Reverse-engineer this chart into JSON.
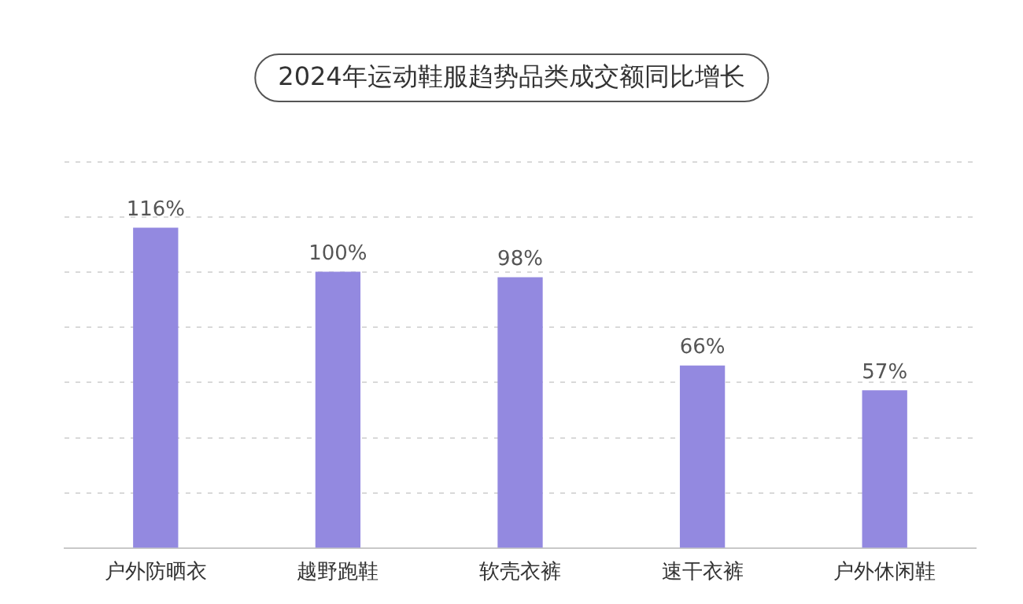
{
  "chart_data": {
    "type": "bar",
    "title": "2024年运动鞋服趋势品类成交额同比增长",
    "categories": [
      "户外防晒衣",
      "越野跑鞋",
      "软壳衣裤",
      "速干衣裤",
      "户外休闲鞋"
    ],
    "values": [
      116,
      100,
      98,
      66,
      57
    ],
    "color": "#9389e0",
    "value_labels": [
      "116%",
      "100%",
      "98%",
      "66%",
      "57%"
    ],
    "ylim": [
      0,
      140
    ],
    "yticks": [
      {
        "value": 0,
        "label": null
      },
      {
        "value": 20,
        "label": null
      },
      {
        "value": 40,
        "label": null
      },
      {
        "value": 60,
        "label": null
      },
      {
        "value": 80,
        "label": null
      },
      {
        "value": 100,
        "label": null
      },
      {
        "value": 120,
        "label": null
      },
      {
        "value": 140,
        "label": null
      }
    ],
    "grid": "y",
    "line_style": "dashed",
    "legend": false
  }
}
